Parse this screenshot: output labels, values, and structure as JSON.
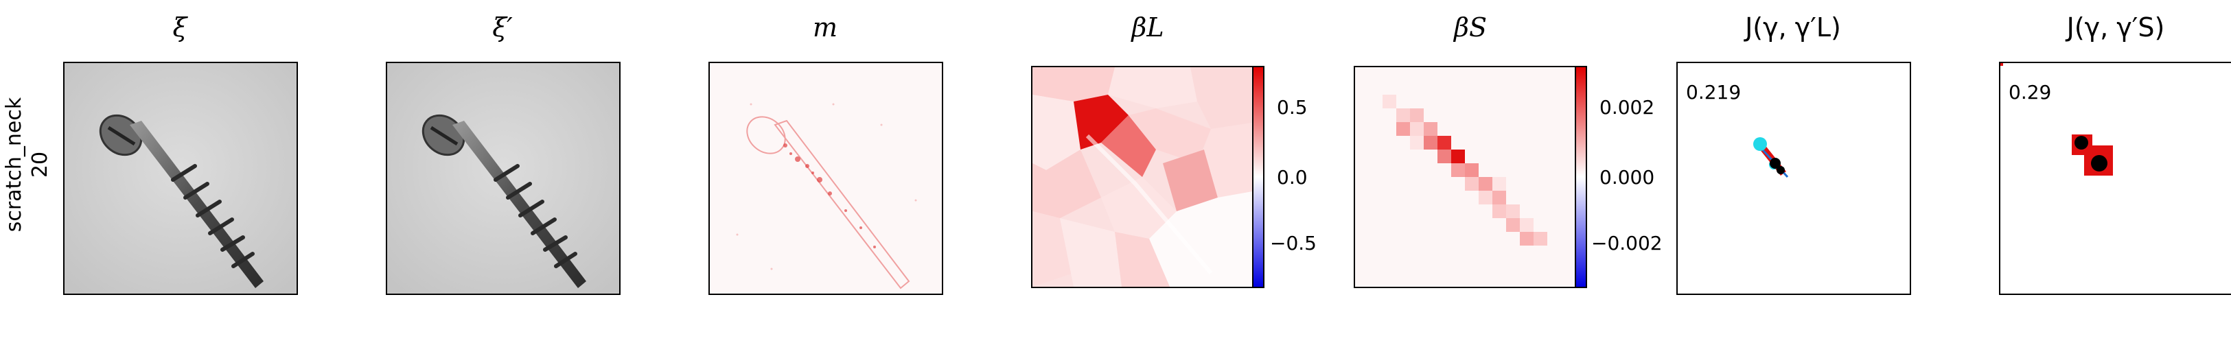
{
  "row": {
    "label": "scratch_neck",
    "index": "20"
  },
  "panels": [
    {
      "id": "xi",
      "title": "ξ"
    },
    {
      "id": "xi_prime",
      "title": "ξ′"
    },
    {
      "id": "m",
      "title": "m"
    },
    {
      "id": "beta_L",
      "title": "βL",
      "colorbar": {
        "ticks": [
          "0.5",
          "0.0",
          "−0.5"
        ],
        "colors": [
          "#e00000",
          "#ffffff",
          "#0000e0"
        ]
      }
    },
    {
      "id": "beta_S",
      "title": "βS",
      "colorbar": {
        "ticks": [
          "0.002",
          "0.000",
          "−0.002"
        ],
        "colors": [
          "#e00000",
          "#ffffff",
          "#0000e0"
        ]
      }
    },
    {
      "id": "J_L",
      "title": "J(γ, γ′L)",
      "score": "0.219"
    },
    {
      "id": "J_S",
      "title": "J(γ, γ′S)",
      "score": "0.29"
    }
  ]
}
